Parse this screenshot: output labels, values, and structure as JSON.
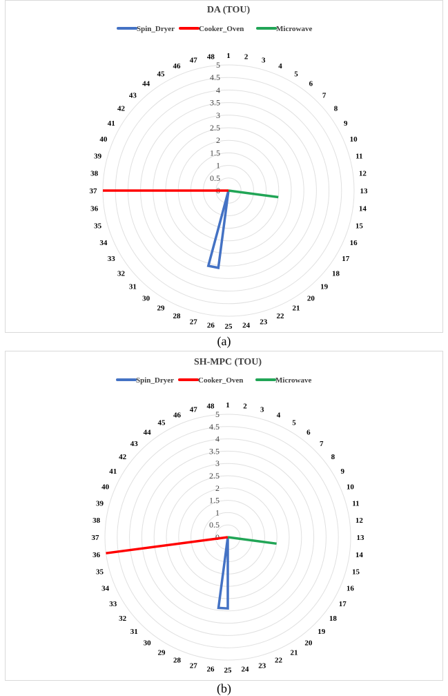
{
  "chart_data": [
    {
      "type": "radar",
      "title": "DA (TOU)",
      "caption": "(a)",
      "categories": [
        "1",
        "2",
        "3",
        "4",
        "5",
        "6",
        "7",
        "8",
        "9",
        "10",
        "11",
        "12",
        "13",
        "14",
        "15",
        "16",
        "17",
        "18",
        "19",
        "20",
        "21",
        "22",
        "23",
        "24",
        "25",
        "26",
        "27",
        "28",
        "29",
        "30",
        "31",
        "32",
        "33",
        "34",
        "35",
        "36",
        "37",
        "38",
        "39",
        "40",
        "41",
        "42",
        "43",
        "44",
        "45",
        "46",
        "47",
        "48"
      ],
      "r_ticks": [
        "0",
        "0.5",
        "1",
        "1.5",
        "2",
        "2.5",
        "3",
        "3.5",
        "4",
        "4.5",
        "5"
      ],
      "rlim": [
        0,
        5
      ],
      "grid": true,
      "legend_position": "top",
      "series": [
        {
          "name": "Spin_Dryer",
          "color": "#4472c4",
          "values": {
            "26": 3.1,
            "27": 3.1
          }
        },
        {
          "name": "Cooker_Oven",
          "color": "#ff0000",
          "values": {
            "37": 5
          }
        },
        {
          "name": "Microwave",
          "color": "#21a556",
          "values": {
            "14": 2.0
          }
        }
      ]
    },
    {
      "type": "radar",
      "title": "SH-MPC (TOU)",
      "caption": "(b)",
      "categories": [
        "1",
        "2",
        "3",
        "4",
        "5",
        "6",
        "7",
        "8",
        "9",
        "10",
        "11",
        "12",
        "13",
        "14",
        "15",
        "16",
        "17",
        "18",
        "19",
        "20",
        "21",
        "22",
        "23",
        "24",
        "25",
        "26",
        "27",
        "28",
        "29",
        "30",
        "31",
        "32",
        "33",
        "34",
        "35",
        "36",
        "37",
        "38",
        "39",
        "40",
        "41",
        "42",
        "43",
        "44",
        "45",
        "46",
        "47",
        "48"
      ],
      "r_ticks": [
        "0",
        "0.5",
        "1",
        "1.5",
        "2",
        "2.5",
        "3",
        "3.5",
        "4",
        "4.5",
        "5"
      ],
      "rlim": [
        0,
        5
      ],
      "grid": true,
      "legend_position": "top",
      "series": [
        {
          "name": "Spin_Dryer",
          "color": "#4472c4",
          "values": {
            "25": 2.9,
            "26": 2.9
          }
        },
        {
          "name": "Cooker_Oven",
          "color": "#ff0000",
          "values": {
            "36": 5
          }
        },
        {
          "name": "Microwave",
          "color": "#21a556",
          "values": {
            "14": 2.0
          }
        }
      ]
    }
  ]
}
